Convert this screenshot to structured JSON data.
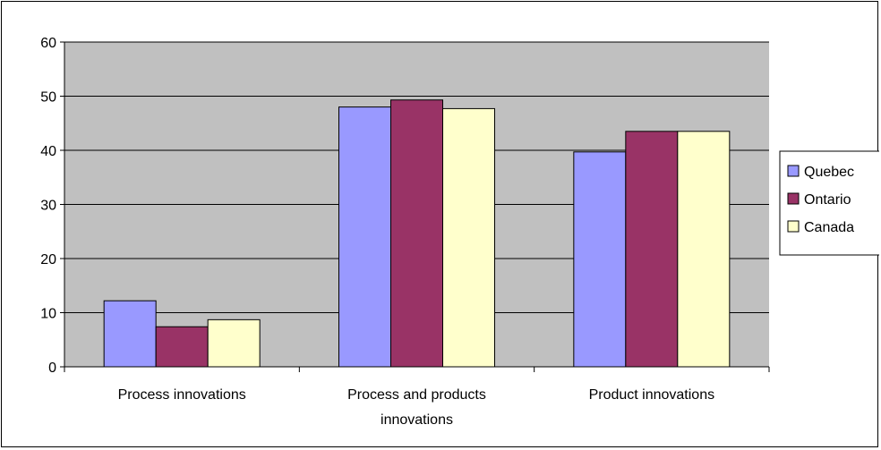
{
  "chart_data": {
    "type": "bar",
    "title": "",
    "xlabel": "",
    "ylabel": "",
    "categories": [
      [
        "Process innovations"
      ],
      [
        "Process and products",
        "innovations"
      ],
      [
        "Product innovations"
      ]
    ],
    "series": [
      {
        "name": "Quebec",
        "color": "#9999ff",
        "values": [
          12.2,
          48.0,
          39.7
        ]
      },
      {
        "name": "Ontario",
        "color": "#993366",
        "values": [
          7.4,
          49.3,
          43.5
        ]
      },
      {
        "name": "Canada",
        "color": "#ffffcc",
        "values": [
          8.7,
          47.7,
          43.5
        ]
      }
    ],
    "ylim": [
      0,
      60
    ],
    "yticks": [
      0,
      10,
      20,
      30,
      40,
      50,
      60
    ],
    "grid": true,
    "plot_background": "#c0c0c0",
    "legend_position": "right"
  }
}
